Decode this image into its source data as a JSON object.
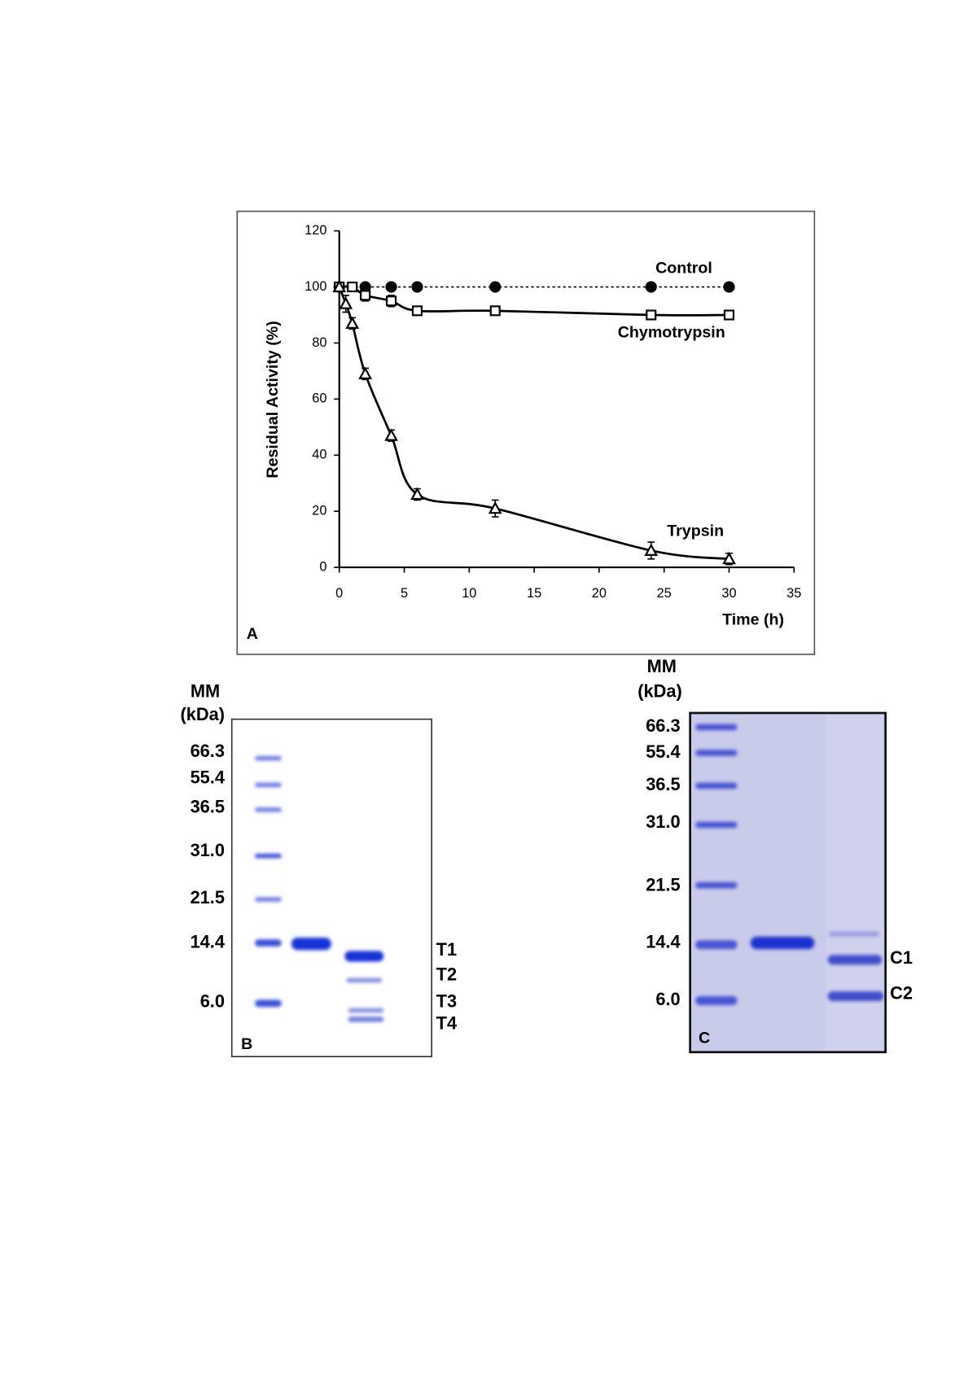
{
  "chart_data": {
    "type": "line",
    "panel_label": "A",
    "x_label": "Time (h)",
    "y_label": "Residual Activity (%)",
    "xlim": [
      0,
      35
    ],
    "xticks": [
      0,
      5,
      10,
      15,
      20,
      25,
      30,
      35
    ],
    "ylim": [
      0,
      120
    ],
    "yticks": [
      0,
      20,
      40,
      60,
      80,
      100,
      120
    ],
    "grid": false,
    "series": [
      {
        "name": "Control",
        "color": "#000000",
        "marker": "filled-circle",
        "line_style": "dotted",
        "x": [
          0,
          2,
          4,
          6,
          12,
          24,
          30
        ],
        "values": [
          100,
          100,
          100,
          100,
          100,
          100,
          100
        ]
      },
      {
        "name": "Chymotrypsin",
        "color": "#000000",
        "marker": "open-square",
        "line_style": "solid",
        "x": [
          0,
          1,
          2,
          4,
          6,
          12,
          24,
          30
        ],
        "values": [
          100,
          100,
          97,
          95,
          91.5,
          91.5,
          90,
          90
        ],
        "errors": [
          0,
          0,
          2,
          2,
          1,
          1,
          0,
          0
        ]
      },
      {
        "name": "Trypsin",
        "color": "#000000",
        "marker": "open-triangle",
        "line_style": "solid",
        "x": [
          0,
          0.5,
          1,
          2,
          4,
          6,
          12,
          24,
          30
        ],
        "values": [
          100,
          94,
          87,
          69,
          47,
          26,
          21,
          6,
          3
        ],
        "errors": [
          0,
          3,
          2,
          2,
          2,
          2,
          3,
          3,
          2
        ]
      }
    ]
  },
  "gel_b": {
    "panel_label": "B",
    "mm_header": [
      "MM",
      "(kDa)"
    ],
    "markers": [
      "66.3",
      "55.4",
      "36.5",
      "31.0",
      "21.5",
      "14.4",
      "6.0"
    ],
    "band_labels": [
      "T1",
      "T2",
      "T3",
      "T4"
    ]
  },
  "gel_c": {
    "panel_label": "C",
    "mm_header": [
      "MM",
      "(kDa)"
    ],
    "markers": [
      "66.3",
      "55.4",
      "36.5",
      "31.0",
      "21.5",
      "14.4",
      "6.0"
    ],
    "band_labels": [
      "C1",
      "C2"
    ]
  }
}
